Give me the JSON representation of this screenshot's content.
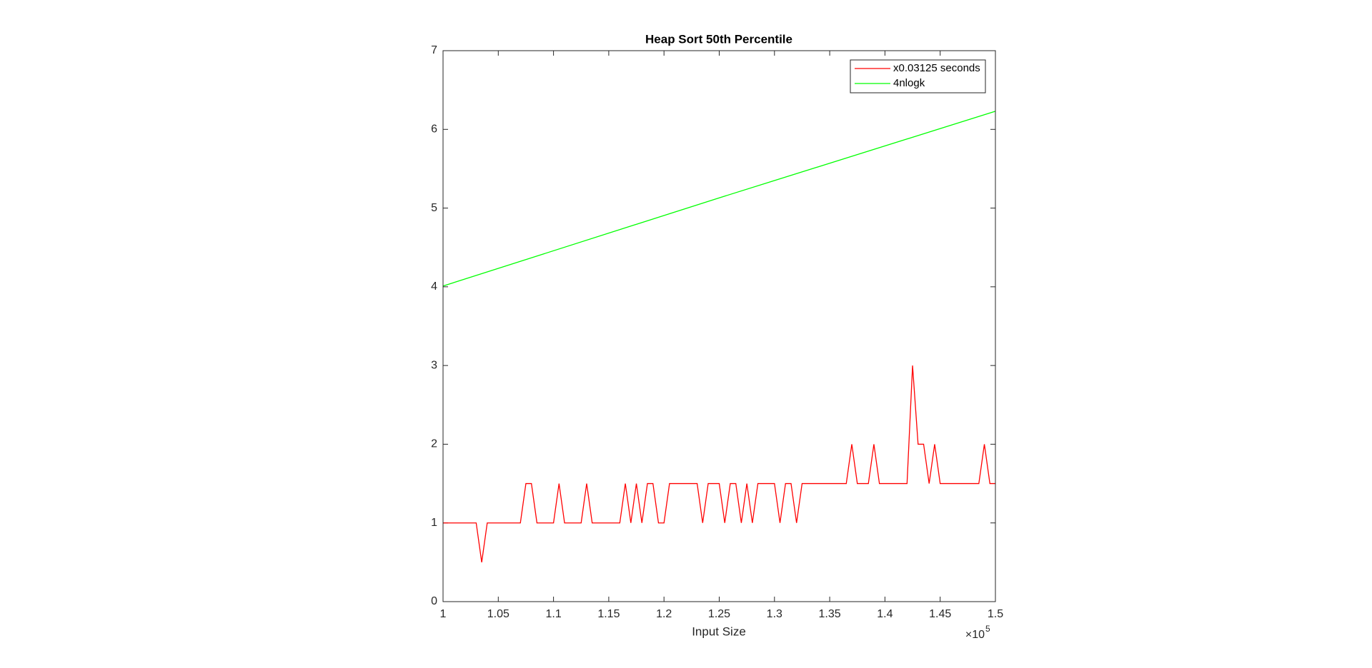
{
  "chart_data": {
    "type": "line",
    "title": "Heap Sort 50th Percentile",
    "x_label": "Input Size",
    "x_multiplier": {
      "base": "×10",
      "exponent": "5"
    },
    "xlim": [
      1,
      1.5
    ],
    "xticks": [
      1,
      1.05,
      1.1,
      1.15,
      1.2,
      1.25,
      1.3,
      1.35,
      1.4,
      1.45,
      1.5
    ],
    "ylim": [
      0,
      7
    ],
    "yticks": [
      0,
      1,
      2,
      3,
      4,
      5,
      6,
      7
    ],
    "grid": false,
    "legend": "top-right",
    "series": [
      {
        "name": "x0.03125 seconds",
        "color": "#ff0000",
        "x": [
          1,
          1.005,
          1.01,
          1.015,
          1.02,
          1.025,
          1.03,
          1.035,
          1.04,
          1.045,
          1.05,
          1.055,
          1.06,
          1.065,
          1.07,
          1.075,
          1.08,
          1.085,
          1.09,
          1.095,
          1.1,
          1.105,
          1.11,
          1.115,
          1.12,
          1.125,
          1.13,
          1.135,
          1.14,
          1.145,
          1.15,
          1.155,
          1.16,
          1.165,
          1.17,
          1.175,
          1.18,
          1.185,
          1.19,
          1.195,
          1.2,
          1.205,
          1.21,
          1.215,
          1.22,
          1.225,
          1.23,
          1.235,
          1.24,
          1.245,
          1.25,
          1.255,
          1.26,
          1.265,
          1.27,
          1.275,
          1.28,
          1.285,
          1.29,
          1.295,
          1.3,
          1.305,
          1.31,
          1.315,
          1.32,
          1.325,
          1.33,
          1.335,
          1.34,
          1.345,
          1.35,
          1.355,
          1.36,
          1.365,
          1.37,
          1.375,
          1.38,
          1.385,
          1.39,
          1.395,
          1.4,
          1.405,
          1.41,
          1.415,
          1.42,
          1.425,
          1.43,
          1.435,
          1.44,
          1.445,
          1.45,
          1.455,
          1.46,
          1.465,
          1.47,
          1.475,
          1.48,
          1.485,
          1.49,
          1.495,
          1.5
        ],
        "values": [
          1,
          1,
          1,
          1,
          1,
          1,
          1,
          0.5,
          1,
          1,
          1,
          1,
          1,
          1,
          1,
          1.5,
          1.5,
          1,
          1,
          1,
          1,
          1.5,
          1,
          1,
          1,
          1,
          1.5,
          1,
          1,
          1,
          1,
          1,
          1,
          1.5,
          1,
          1.5,
          1,
          1.5,
          1.5,
          1,
          1,
          1.5,
          1.5,
          1.5,
          1.5,
          1.5,
          1.5,
          1,
          1.5,
          1.5,
          1.5,
          1,
          1.5,
          1.5,
          1,
          1.5,
          1,
          1.5,
          1.5,
          1.5,
          1.5,
          1,
          1.5,
          1.5,
          1,
          1.5,
          1.5,
          1.5,
          1.5,
          1.5,
          1.5,
          1.5,
          1.5,
          1.5,
          2,
          1.5,
          1.5,
          1.5,
          2,
          1.5,
          1.5,
          1.5,
          1.5,
          1.5,
          1.5,
          3,
          2,
          2,
          1.5,
          2,
          1.5,
          1.5,
          1.5,
          1.5,
          1.5,
          1.5,
          1.5,
          1.5,
          2,
          1.5,
          1.5
        ]
      },
      {
        "name": "4nlogk",
        "color": "#00ff00",
        "x": [
          1,
          1.25,
          1.5
        ],
        "values": [
          4.01,
          5.13,
          6.23
        ]
      }
    ]
  }
}
